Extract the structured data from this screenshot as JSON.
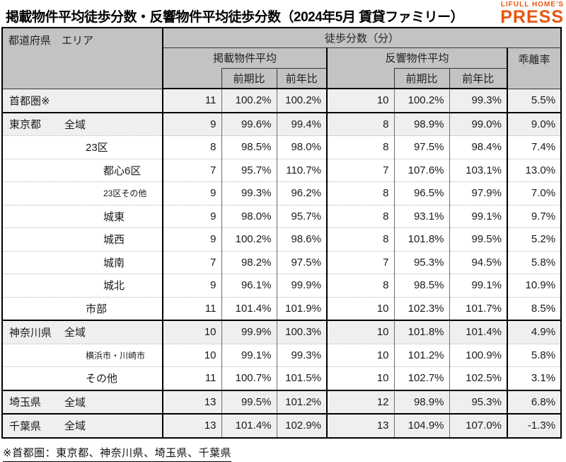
{
  "title": "掲載物件平均徒歩分数・反響物件平均徒歩分数（2024年5月 賃貸ファミリー）",
  "logo": {
    "line1": "LIFULL HOME'S",
    "line2": "PRESS"
  },
  "colors": {
    "logo_orange": "#e8550f",
    "header_gray": "#c3c3c3",
    "stripe_gray": "#efefef",
    "border_black": "#000000"
  },
  "footnote": "※首都圏：東京都、神奈川県、埼玉県、千葉県",
  "table": {
    "corner_header": "都道府県　エリア",
    "top_header": "徒歩分数（分）",
    "group_listed": "掲載物件平均",
    "group_response": "反響物件平均",
    "deviation_header": "乖離率",
    "sub_prev": "前期比",
    "sub_yoy": "前年比",
    "rows": [
      {
        "pref": "首都圏※",
        "area": "",
        "indent": 0,
        "small": false,
        "shaded": true,
        "group_start": false,
        "listed_min": "11",
        "listed_prev": "100.2%",
        "listed_yoy": "100.2%",
        "resp_min": "10",
        "resp_prev": "100.2%",
        "resp_yoy": "99.3%",
        "dev": "5.5%"
      },
      {
        "pref": "東京都",
        "area": "全域",
        "indent": 1,
        "small": false,
        "shaded": true,
        "group_start": true,
        "listed_min": "9",
        "listed_prev": "99.6%",
        "listed_yoy": "99.4%",
        "resp_min": "8",
        "resp_prev": "98.9%",
        "resp_yoy": "99.0%",
        "dev": "9.0%"
      },
      {
        "pref": "",
        "area": "23区",
        "indent": 2,
        "small": false,
        "shaded": false,
        "group_start": false,
        "listed_min": "8",
        "listed_prev": "98.5%",
        "listed_yoy": "98.0%",
        "resp_min": "8",
        "resp_prev": "97.5%",
        "resp_yoy": "98.4%",
        "dev": "7.4%"
      },
      {
        "pref": "",
        "area": "都心6区",
        "indent": 3,
        "small": false,
        "shaded": false,
        "group_start": false,
        "listed_min": "7",
        "listed_prev": "95.7%",
        "listed_yoy": "110.7%",
        "resp_min": "7",
        "resp_prev": "107.6%",
        "resp_yoy": "103.1%",
        "dev": "13.0%"
      },
      {
        "pref": "",
        "area": "23区その他",
        "indent": 3,
        "small": true,
        "shaded": false,
        "group_start": false,
        "listed_min": "9",
        "listed_prev": "99.3%",
        "listed_yoy": "96.2%",
        "resp_min": "8",
        "resp_prev": "96.5%",
        "resp_yoy": "97.9%",
        "dev": "7.0%"
      },
      {
        "pref": "",
        "area": "城東",
        "indent": 3,
        "small": false,
        "shaded": false,
        "group_start": false,
        "listed_min": "9",
        "listed_prev": "98.0%",
        "listed_yoy": "95.7%",
        "resp_min": "8",
        "resp_prev": "93.1%",
        "resp_yoy": "99.1%",
        "dev": "9.7%"
      },
      {
        "pref": "",
        "area": "城西",
        "indent": 3,
        "small": false,
        "shaded": false,
        "group_start": false,
        "listed_min": "9",
        "listed_prev": "100.2%",
        "listed_yoy": "98.6%",
        "resp_min": "8",
        "resp_prev": "101.8%",
        "resp_yoy": "99.5%",
        "dev": "5.2%"
      },
      {
        "pref": "",
        "area": "城南",
        "indent": 3,
        "small": false,
        "shaded": false,
        "group_start": false,
        "listed_min": "7",
        "listed_prev": "98.2%",
        "listed_yoy": "97.5%",
        "resp_min": "7",
        "resp_prev": "95.3%",
        "resp_yoy": "94.5%",
        "dev": "5.8%"
      },
      {
        "pref": "",
        "area": "城北",
        "indent": 3,
        "small": false,
        "shaded": false,
        "group_start": false,
        "listed_min": "9",
        "listed_prev": "96.1%",
        "listed_yoy": "99.9%",
        "resp_min": "8",
        "resp_prev": "98.5%",
        "resp_yoy": "99.1%",
        "dev": "10.9%"
      },
      {
        "pref": "",
        "area": "市部",
        "indent": 2,
        "small": false,
        "shaded": false,
        "group_start": false,
        "listed_min": "11",
        "listed_prev": "101.4%",
        "listed_yoy": "101.9%",
        "resp_min": "10",
        "resp_prev": "102.3%",
        "resp_yoy": "101.7%",
        "dev": "8.5%"
      },
      {
        "pref": "神奈川県",
        "area": "全域",
        "indent": 1,
        "small": false,
        "shaded": true,
        "group_start": true,
        "listed_min": "10",
        "listed_prev": "99.9%",
        "listed_yoy": "100.3%",
        "resp_min": "10",
        "resp_prev": "101.8%",
        "resp_yoy": "101.4%",
        "dev": "4.9%"
      },
      {
        "pref": "",
        "area": "横浜市・川崎市",
        "indent": 2,
        "small": true,
        "shaded": false,
        "group_start": false,
        "listed_min": "10",
        "listed_prev": "99.1%",
        "listed_yoy": "99.3%",
        "resp_min": "10",
        "resp_prev": "101.2%",
        "resp_yoy": "100.9%",
        "dev": "5.8%"
      },
      {
        "pref": "",
        "area": "その他",
        "indent": 2,
        "small": false,
        "shaded": false,
        "group_start": false,
        "listed_min": "11",
        "listed_prev": "100.7%",
        "listed_yoy": "101.5%",
        "resp_min": "10",
        "resp_prev": "102.7%",
        "resp_yoy": "102.5%",
        "dev": "3.1%"
      },
      {
        "pref": "埼玉県",
        "area": "全域",
        "indent": 1,
        "small": false,
        "shaded": true,
        "group_start": true,
        "listed_min": "13",
        "listed_prev": "99.5%",
        "listed_yoy": "101.2%",
        "resp_min": "12",
        "resp_prev": "98.9%",
        "resp_yoy": "95.3%",
        "dev": "6.8%"
      },
      {
        "pref": "千葉県",
        "area": "全域",
        "indent": 1,
        "small": false,
        "shaded": true,
        "group_start": true,
        "listed_min": "13",
        "listed_prev": "101.4%",
        "listed_yoy": "102.9%",
        "resp_min": "13",
        "resp_prev": "104.9%",
        "resp_yoy": "107.0%",
        "dev": "-1.3%"
      }
    ]
  }
}
